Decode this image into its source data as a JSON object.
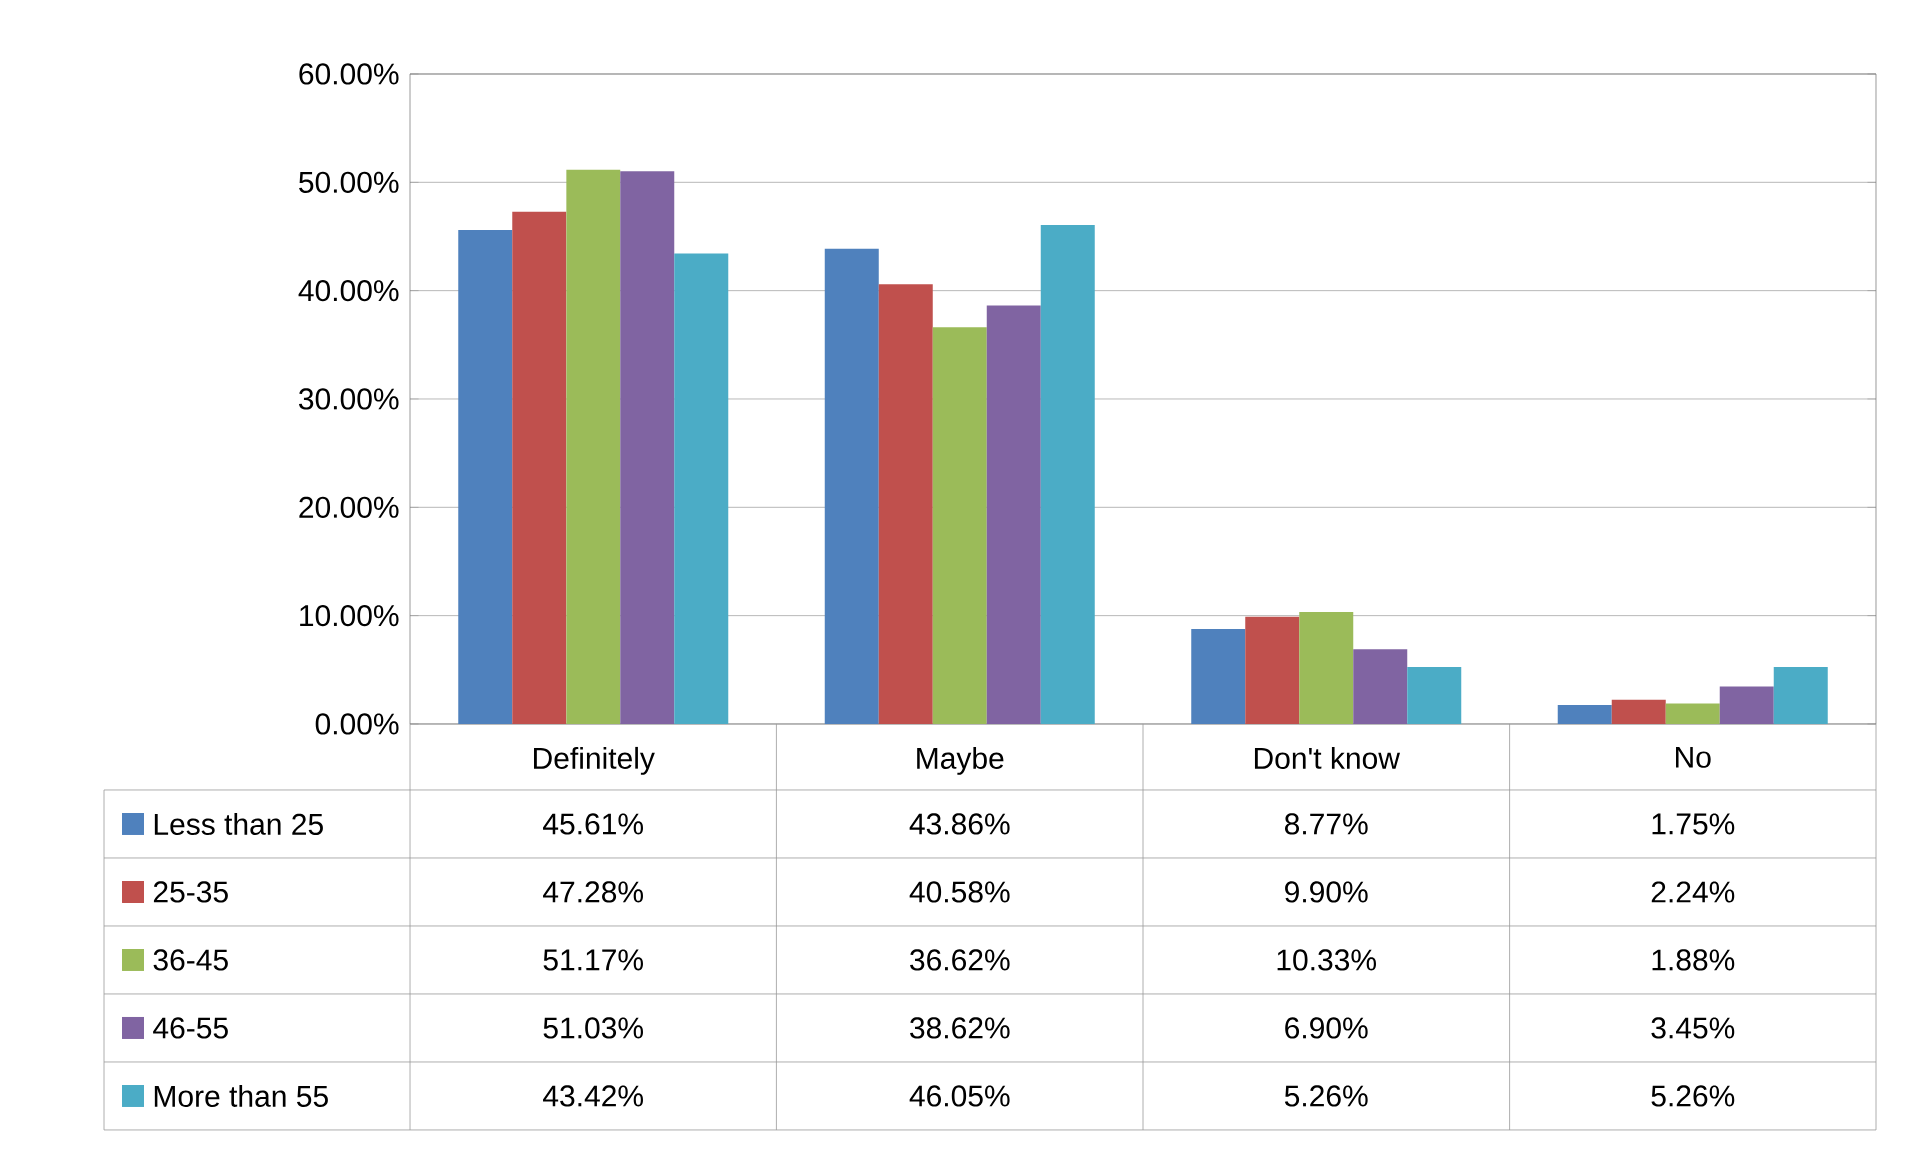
{
  "chart_data": {
    "type": "bar",
    "categories": [
      "Definitely",
      "Maybe",
      "Don't know",
      "No"
    ],
    "series": [
      {
        "name": "Less than 25",
        "color": "#4f81bd",
        "values": [
          45.61,
          43.86,
          8.77,
          1.75
        ],
        "value_labels": [
          "45.61%",
          "43.86%",
          "8.77%",
          "1.75%"
        ]
      },
      {
        "name": "25-35",
        "color": "#c0504d",
        "values": [
          47.28,
          40.58,
          9.9,
          2.24
        ],
        "value_labels": [
          "47.28%",
          "40.58%",
          "9.90%",
          "2.24%"
        ]
      },
      {
        "name": "36-45",
        "color": "#9bbb59",
        "values": [
          51.17,
          36.62,
          10.33,
          1.88
        ],
        "value_labels": [
          "51.17%",
          "36.62%",
          "10.33%",
          "1.88%"
        ]
      },
      {
        "name": "46-55",
        "color": "#8064a2",
        "values": [
          51.03,
          38.62,
          6.9,
          3.45
        ],
        "value_labels": [
          "51.03%",
          "38.62%",
          "6.90%",
          "3.45%"
        ]
      },
      {
        "name": "More than 55",
        "color": "#4bacc6",
        "values": [
          43.42,
          46.05,
          5.26,
          5.26
        ],
        "value_labels": [
          "43.42%",
          "46.05%",
          "5.26%",
          "5.26%"
        ]
      }
    ],
    "ylim": [
      0,
      60
    ],
    "yticks": [
      {
        "value": 0,
        "label": "0.00%"
      },
      {
        "value": 10,
        "label": "10.00%"
      },
      {
        "value": 20,
        "label": "20.00%"
      },
      {
        "value": 30,
        "label": "30.00%"
      },
      {
        "value": 40,
        "label": "40.00%"
      },
      {
        "value": 50,
        "label": "50.00%"
      },
      {
        "value": 60,
        "label": "60.00%"
      }
    ],
    "grid": "y",
    "legend": "bottom left"
  }
}
